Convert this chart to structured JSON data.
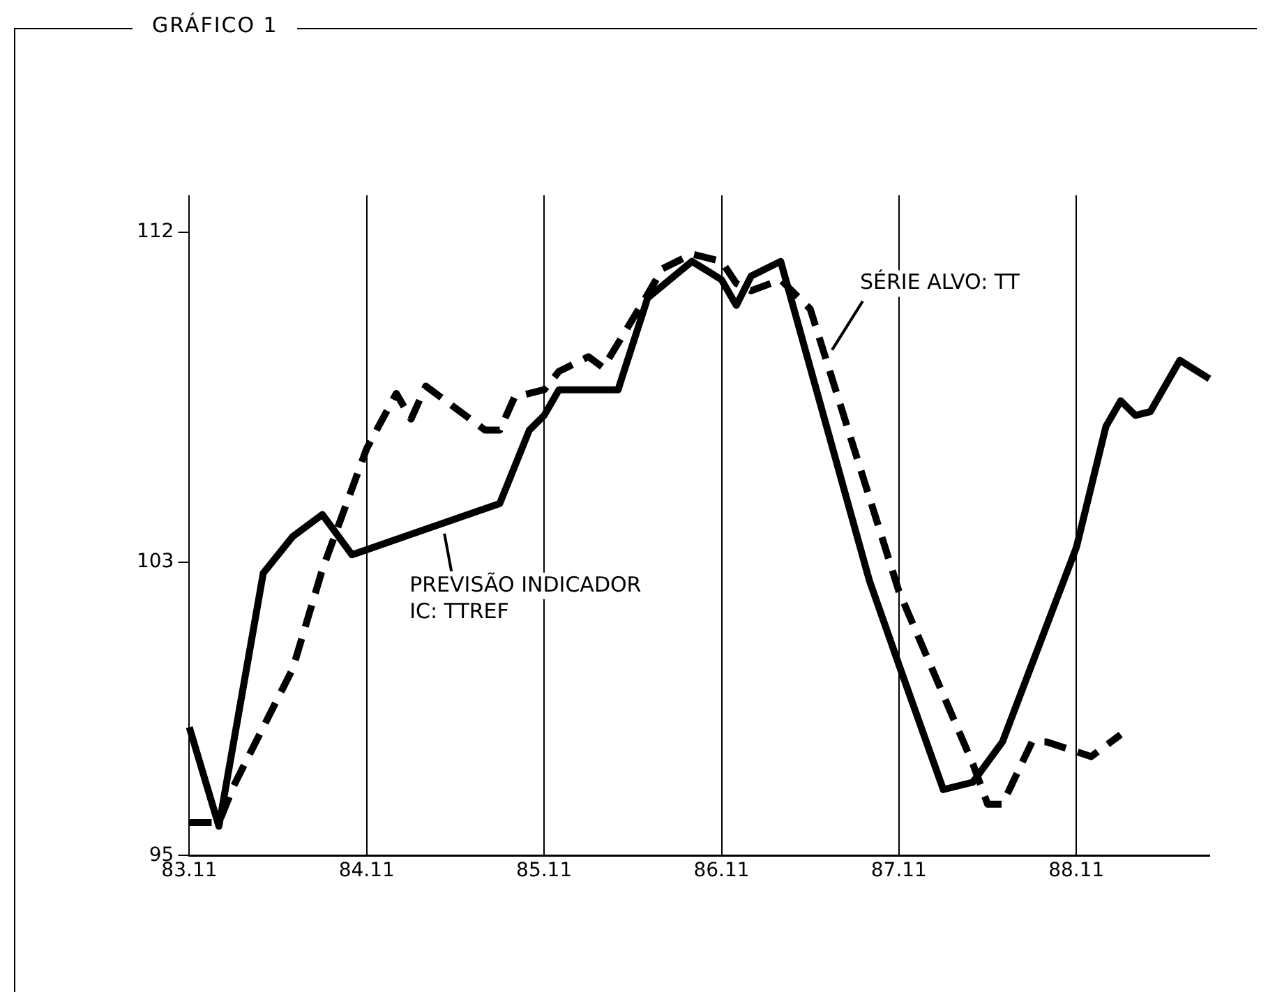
{
  "chart_data": {
    "type": "line",
    "title": "GRÁFICO 1",
    "categories": [
      "83.11",
      null,
      null,
      null,
      null,
      null,
      null,
      null,
      null,
      null,
      null,
      null,
      "84.11",
      null,
      null,
      null,
      null,
      null,
      null,
      null,
      null,
      null,
      null,
      null,
      "85.11",
      null,
      null,
      null,
      null,
      null,
      null,
      null,
      null,
      null,
      null,
      null,
      "86.11",
      null,
      null,
      null,
      null,
      null,
      null,
      null,
      null,
      null,
      null,
      null,
      "87.11",
      null,
      null,
      null,
      null,
      null,
      null,
      null,
      null,
      null,
      null,
      null,
      "88.11",
      null,
      null,
      null,
      null,
      null,
      null,
      null,
      null,
      null
    ],
    "ylim": [
      95,
      113
    ],
    "yticks": [
      95,
      103,
      112
    ],
    "grid": "x",
    "marker": "none",
    "series": [
      {
        "name": "PREVISÃO INDICADOR IC: TTREF",
        "color": "#000000",
        "line_style": "solid",
        "values": [
          98.5,
          null,
          95.8,
          null,
          null,
          102.7,
          null,
          103.7,
          null,
          104.3,
          null,
          103.2,
          null,
          null,
          null,
          null,
          null,
          null,
          null,
          null,
          null,
          104.6,
          null,
          106.6,
          107.0,
          107.7,
          null,
          null,
          null,
          107.7,
          null,
          110.2,
          null,
          null,
          111.2,
          null,
          110.7,
          110.0,
          110.8,
          null,
          111.2,
          null,
          null,
          null,
          null,
          null,
          102.5,
          null,
          100.2,
          null,
          null,
          96.8,
          null,
          97.0,
          null,
          98.1,
          null,
          null,
          null,
          null,
          103.4,
          null,
          106.7,
          107.4,
          107.0,
          107.1,
          null,
          108.5,
          null,
          108.0
        ]
      },
      {
        "name": "SÉRIE ALVO: TT",
        "color": "#000000",
        "line_style": "dashed",
        "values": [
          95.9,
          null,
          95.9,
          96.9,
          null,
          98.5,
          null,
          100.1,
          null,
          102.8,
          null,
          null,
          106.1,
          null,
          107.6,
          106.9,
          107.8,
          null,
          null,
          null,
          106.6,
          106.6,
          107.5,
          null,
          107.7,
          108.2,
          null,
          108.6,
          108.3,
          null,
          null,
          110.3,
          111.0,
          null,
          111.4,
          null,
          111.2,
          110.6,
          110.4,
          null,
          110.7,
          null,
          109.9,
          null,
          null,
          null,
          null,
          null,
          102.2,
          null,
          null,
          null,
          null,
          97.5,
          96.4,
          96.4,
          null,
          98.1,
          98.1,
          null,
          null,
          97.7,
          null,
          98.3,
          null,
          null,
          null,
          null,
          null,
          null
        ]
      }
    ]
  }
}
